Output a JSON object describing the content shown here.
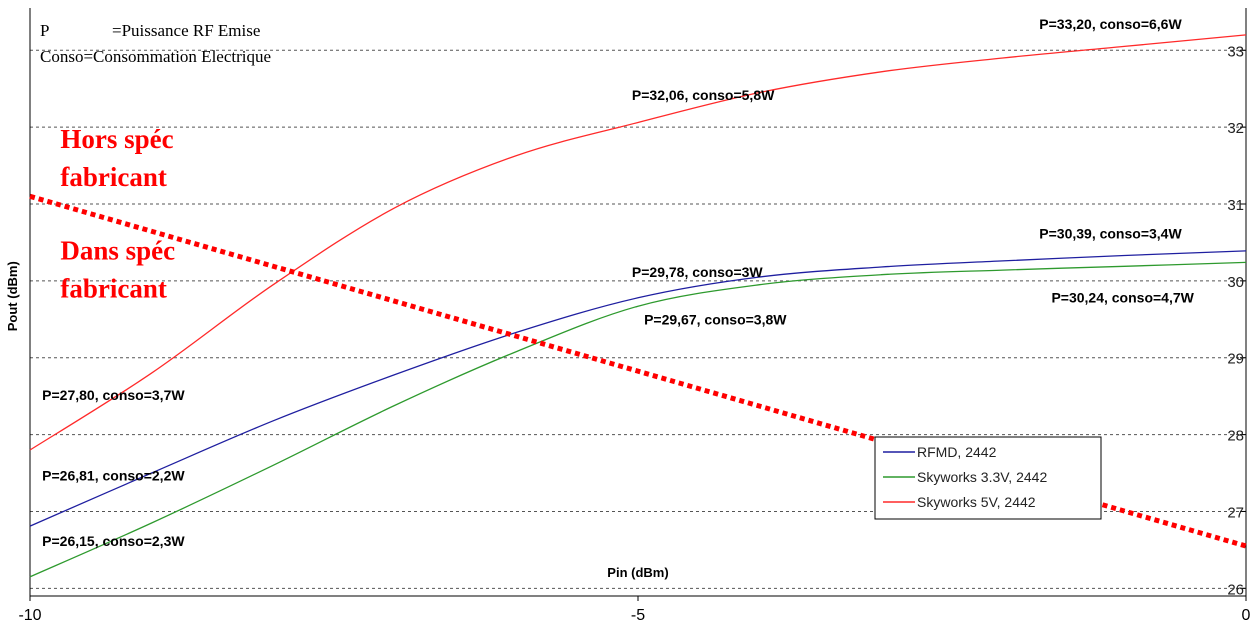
{
  "chart_data": {
    "type": "line",
    "xlabel": "Pin (dBm)",
    "ylabel": "Pout (dBm)",
    "xlim": [
      -10,
      0
    ],
    "ylim": [
      25.9,
      33.55
    ],
    "xticks": [
      -10,
      -5,
      0
    ],
    "xtick_labels": [
      "-10",
      "-5",
      "0"
    ],
    "yticks": [
      26,
      27,
      28,
      29,
      30,
      31,
      32,
      33
    ],
    "ytick_labels": [
      "26",
      "27",
      "28",
      "29",
      "30",
      "31",
      "32",
      "33"
    ],
    "grid": "horizontal dashed",
    "legend_position": "lower-right",
    "series": [
      {
        "name": "RFMD, 2442",
        "color": "#1f1fa0",
        "x": [
          -10,
          -9,
          -8,
          -7,
          -6,
          -5,
          -4,
          -3,
          -2,
          -1,
          0
        ],
        "y": [
          26.81,
          27.5,
          28.18,
          28.78,
          29.33,
          29.78,
          30.05,
          30.18,
          30.26,
          30.33,
          30.39
        ]
      },
      {
        "name": "Skyworks 3.3V, 2442",
        "color": "#2e9a2e",
        "x": [
          -10,
          -9,
          -8,
          -7,
          -6,
          -5,
          -4,
          -3,
          -2,
          -1,
          0
        ],
        "y": [
          26.15,
          26.85,
          27.6,
          28.38,
          29.08,
          29.67,
          29.95,
          30.08,
          30.14,
          30.19,
          30.24
        ]
      },
      {
        "name": "Skyworks 5V, 2442",
        "color": "#ff2a2a",
        "x": [
          -10,
          -9,
          -8,
          -7,
          -6,
          -5,
          -4,
          -3,
          -2,
          -1,
          0
        ],
        "y": [
          27.8,
          28.8,
          29.95,
          30.95,
          31.63,
          32.06,
          32.45,
          32.72,
          32.9,
          33.05,
          33.2
        ]
      }
    ],
    "threshold_line": {
      "color": "#ff0000",
      "style": "dotted",
      "x": [
        -10,
        0
      ],
      "y": [
        31.1,
        26.55
      ]
    },
    "point_labels": [
      {
        "text": "P=33,20, conso=6,6W",
        "x": -1.7,
        "y": 33.28
      },
      {
        "text": "P=32,06, conso=5,8W",
        "x": -5.05,
        "y": 32.35
      },
      {
        "text": "P=29,78, conso=3W",
        "x": -5.05,
        "y": 30.05
      },
      {
        "text": "P=30,39, conso=3,4W",
        "x": -1.7,
        "y": 30.55
      },
      {
        "text": "P=30,24, conso=4,7W",
        "x": -1.6,
        "y": 29.72
      },
      {
        "text": "P=29,67, conso=3,8W",
        "x": -4.95,
        "y": 29.43
      },
      {
        "text": "P=27,80, conso=3,7W",
        "x": -9.9,
        "y": 28.45
      },
      {
        "text": "P=26,81, conso=2,2W",
        "x": -9.9,
        "y": 27.4
      },
      {
        "text": "P=26,15, conso=2,3W",
        "x": -9.9,
        "y": 26.55
      }
    ],
    "annotations": [
      {
        "lines": [
          "Hors spéc",
          "fabricant"
        ],
        "color": "#ff0000",
        "x": -9.75,
        "y": 31.73
      },
      {
        "lines": [
          "Dans spéc",
          "fabricant"
        ],
        "color": "#ff0000",
        "x": -9.75,
        "y": 30.28
      }
    ],
    "note_lines": [
      {
        "key": "P",
        "value": "=Puissance RF Emise"
      },
      {
        "key": "",
        "value": "Conso=Consommation Electrique"
      }
    ]
  }
}
